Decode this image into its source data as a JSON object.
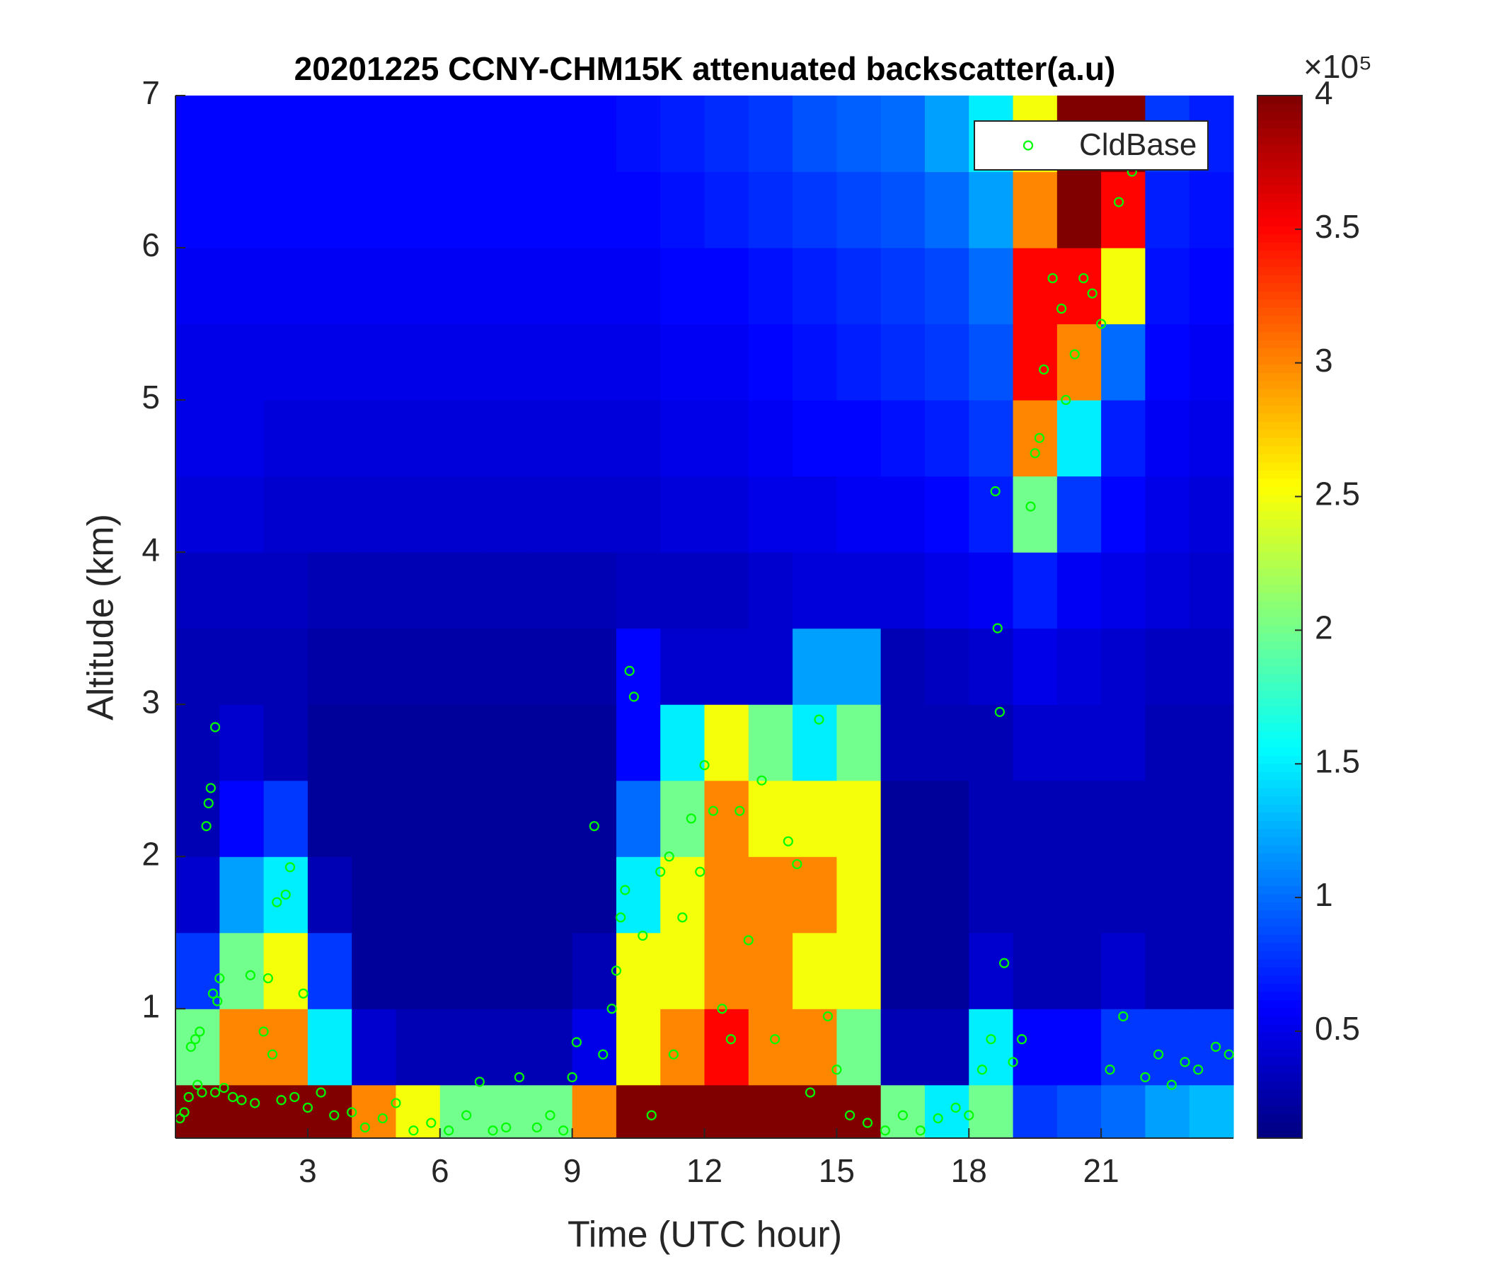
{
  "chart_data": {
    "type": "heatmap",
    "title": "20201225 CCNY-CHM15K attenuated backscatter(a.u)",
    "x_label": "Time (UTC hour)",
    "y_label": "Altitude (km)",
    "x_bins": [
      0,
      1,
      2,
      3,
      4,
      5,
      6,
      7,
      8,
      9,
      10,
      11,
      12,
      13,
      14,
      15,
      16,
      17,
      18,
      19,
      20,
      21,
      22,
      23,
      24
    ],
    "y_bins": [
      0.15,
      0.5,
      1,
      1.5,
      2,
      2.5,
      3,
      3.5,
      4,
      4.5,
      5,
      5.5,
      6,
      6.5,
      7
    ],
    "z": [
      [
        4,
        4,
        4,
        4,
        3,
        2.5,
        2,
        2,
        2,
        3,
        4,
        4,
        4,
        4,
        4,
        4,
        2,
        1.5,
        2,
        0.8,
        0.9,
        1,
        1.2,
        1.3
      ],
      [
        2,
        3,
        3,
        1.5,
        0.4,
        0.3,
        0.3,
        0.3,
        0.3,
        0.5,
        2.5,
        3,
        3.5,
        3,
        3,
        2,
        0.3,
        0.3,
        1.5,
        0.6,
        0.6,
        0.8,
        0.8,
        0.8
      ],
      [
        0.8,
        2,
        2.5,
        0.8,
        0.2,
        0.2,
        0.2,
        0.2,
        0.2,
        0.3,
        2.5,
        2.5,
        3,
        3,
        2.5,
        2.5,
        0.2,
        0.2,
        0.4,
        0.3,
        0.3,
        0.4,
        0.3,
        0.3
      ],
      [
        0.4,
        1.2,
        1.5,
        0.3,
        0.2,
        0.2,
        0.2,
        0.2,
        0.2,
        0.2,
        1.5,
        2.5,
        3,
        3,
        3,
        2.5,
        0.2,
        0.2,
        0.3,
        0.3,
        0.3,
        0.3,
        0.3,
        0.3
      ],
      [
        0.3,
        0.6,
        0.8,
        0.2,
        0.2,
        0.2,
        0.2,
        0.2,
        0.2,
        0.2,
        1,
        2,
        3,
        2.5,
        2.5,
        2.5,
        0.2,
        0.2,
        0.3,
        0.3,
        0.3,
        0.3,
        0.3,
        0.3
      ],
      [
        0.3,
        0.4,
        0.3,
        0.2,
        0.2,
        0.2,
        0.2,
        0.2,
        0.2,
        0.2,
        0.6,
        1.5,
        2.5,
        2,
        1.5,
        2,
        0.3,
        0.3,
        0.3,
        0.4,
        0.4,
        0.4,
        0.3,
        0.3
      ],
      [
        0.3,
        0.3,
        0.3,
        0.25,
        0.25,
        0.25,
        0.25,
        0.25,
        0.25,
        0.25,
        0.6,
        0.4,
        0.4,
        0.4,
        1.2,
        1.2,
        0.3,
        0.35,
        0.4,
        0.5,
        0.45,
        0.4,
        0.35,
        0.35
      ],
      [
        0.35,
        0.35,
        0.35,
        0.3,
        0.3,
        0.3,
        0.3,
        0.3,
        0.3,
        0.3,
        0.35,
        0.35,
        0.35,
        0.4,
        0.45,
        0.45,
        0.45,
        0.5,
        0.55,
        0.7,
        0.55,
        0.5,
        0.45,
        0.4
      ],
      [
        0.45,
        0.45,
        0.4,
        0.4,
        0.4,
        0.4,
        0.4,
        0.4,
        0.4,
        0.4,
        0.4,
        0.45,
        0.45,
        0.5,
        0.5,
        0.55,
        0.55,
        0.6,
        0.7,
        2,
        0.8,
        0.6,
        0.5,
        0.45
      ],
      [
        0.5,
        0.5,
        0.45,
        0.45,
        0.45,
        0.45,
        0.45,
        0.45,
        0.45,
        0.45,
        0.45,
        0.5,
        0.5,
        0.55,
        0.6,
        0.6,
        0.65,
        0.7,
        0.8,
        3,
        1.5,
        0.7,
        0.55,
        0.5
      ],
      [
        0.5,
        0.5,
        0.5,
        0.5,
        0.5,
        0.5,
        0.5,
        0.5,
        0.5,
        0.5,
        0.5,
        0.55,
        0.55,
        0.6,
        0.65,
        0.7,
        0.75,
        0.8,
        0.9,
        3.5,
        3,
        1,
        0.6,
        0.55
      ],
      [
        0.55,
        0.55,
        0.55,
        0.55,
        0.55,
        0.55,
        0.55,
        0.55,
        0.55,
        0.55,
        0.55,
        0.6,
        0.6,
        0.65,
        0.7,
        0.75,
        0.8,
        0.85,
        1,
        3.5,
        3.5,
        2.5,
        0.65,
        0.6
      ],
      [
        0.6,
        0.6,
        0.6,
        0.6,
        0.6,
        0.6,
        0.6,
        0.6,
        0.6,
        0.6,
        0.6,
        0.65,
        0.7,
        0.75,
        0.8,
        0.85,
        0.9,
        1,
        1.2,
        3,
        4,
        3.5,
        0.7,
        0.65
      ],
      [
        0.6,
        0.6,
        0.6,
        0.6,
        0.6,
        0.6,
        0.6,
        0.6,
        0.6,
        0.6,
        0.65,
        0.7,
        0.75,
        0.8,
        0.9,
        0.95,
        1,
        1.2,
        1.5,
        2.5,
        4,
        4,
        0.8,
        0.7
      ]
    ],
    "xlim": [
      0,
      24
    ],
    "ylim": [
      0.15,
      7
    ],
    "xticks": [
      3,
      6,
      9,
      12,
      15,
      18,
      21
    ],
    "yticks": [
      1,
      2,
      3,
      4,
      5,
      6,
      7
    ],
    "clim": [
      0.1,
      4
    ],
    "cticks": [
      0.5,
      1,
      1.5,
      2,
      2.5,
      3,
      3.5,
      4
    ],
    "colorbar_label": "×10⁵",
    "colormap": "jet",
    "legend": "upper right",
    "series": [
      {
        "name": "CldBase",
        "type": "scatter",
        "color": "#00ff00",
        "x": [
          0.1,
          0.2,
          0.3,
          0.35,
          0.45,
          0.5,
          0.55,
          0.6,
          0.7,
          0.75,
          0.8,
          0.85,
          0.9,
          0.95,
          1.0,
          0.9,
          1.1,
          1.3,
          1.5,
          1.7,
          1.8,
          2.0,
          2.1,
          2.2,
          2.3,
          2.4,
          2.5,
          2.6,
          2.7,
          2.9,
          3.0,
          3.3,
          3.6,
          4.0,
          4.3,
          4.7,
          5.0,
          5.4,
          5.8,
          6.2,
          6.6,
          6.9,
          7.2,
          7.5,
          7.8,
          8.2,
          8.5,
          8.8,
          9.0,
          9.1,
          9.5,
          9.7,
          9.9,
          10.0,
          10.1,
          10.2,
          10.3,
          10.4,
          10.6,
          10.8,
          11.0,
          11.2,
          11.3,
          11.5,
          11.7,
          11.9,
          12.0,
          12.2,
          12.4,
          12.6,
          12.8,
          13.0,
          13.3,
          13.6,
          13.9,
          14.1,
          14.4,
          14.6,
          14.8,
          15.0,
          15.3,
          15.7,
          16.1,
          16.5,
          16.9,
          17.3,
          17.7,
          18.0,
          18.3,
          18.5,
          18.6,
          18.65,
          18.7,
          18.8,
          19.0,
          19.2,
          19.4,
          19.5,
          19.6,
          19.7,
          19.9,
          20.1,
          20.2,
          20.4,
          20.6,
          20.8,
          21.0,
          21.2,
          21.4,
          21.5,
          21.7,
          22.0,
          22.3,
          22.6,
          22.9,
          23.2,
          23.6,
          23.9
        ],
        "values": [
          0.28,
          0.32,
          0.42,
          0.75,
          0.8,
          0.5,
          0.85,
          0.45,
          2.2,
          2.35,
          2.45,
          1.1,
          0.45,
          1.05,
          1.2,
          2.85,
          0.48,
          0.42,
          0.4,
          1.22,
          0.38,
          0.85,
          1.2,
          0.7,
          1.7,
          0.4,
          1.75,
          1.93,
          0.42,
          1.1,
          0.35,
          0.45,
          0.3,
          0.32,
          0.22,
          0.28,
          0.38,
          0.2,
          0.25,
          0.2,
          0.3,
          0.52,
          0.2,
          0.22,
          0.55,
          0.22,
          0.3,
          0.2,
          0.55,
          0.78,
          2.2,
          0.7,
          1.0,
          1.25,
          1.6,
          1.78,
          3.22,
          3.05,
          1.48,
          0.3,
          1.9,
          2.0,
          0.7,
          1.6,
          2.25,
          1.9,
          2.6,
          2.3,
          1.0,
          0.8,
          2.3,
          1.45,
          2.5,
          0.8,
          2.1,
          1.95,
          0.45,
          2.9,
          0.95,
          0.6,
          0.3,
          0.25,
          0.2,
          0.3,
          0.2,
          0.28,
          0.35,
          0.3,
          0.6,
          0.8,
          4.4,
          3.5,
          2.95,
          1.3,
          0.65,
          0.8,
          4.3,
          4.65,
          4.75,
          5.2,
          5.8,
          5.6,
          5.0,
          5.3,
          5.8,
          5.7,
          5.5,
          0.6,
          6.3,
          0.95,
          6.5,
          0.55,
          0.7,
          0.5,
          0.65,
          0.6,
          0.75,
          0.7
        ]
      }
    ]
  }
}
